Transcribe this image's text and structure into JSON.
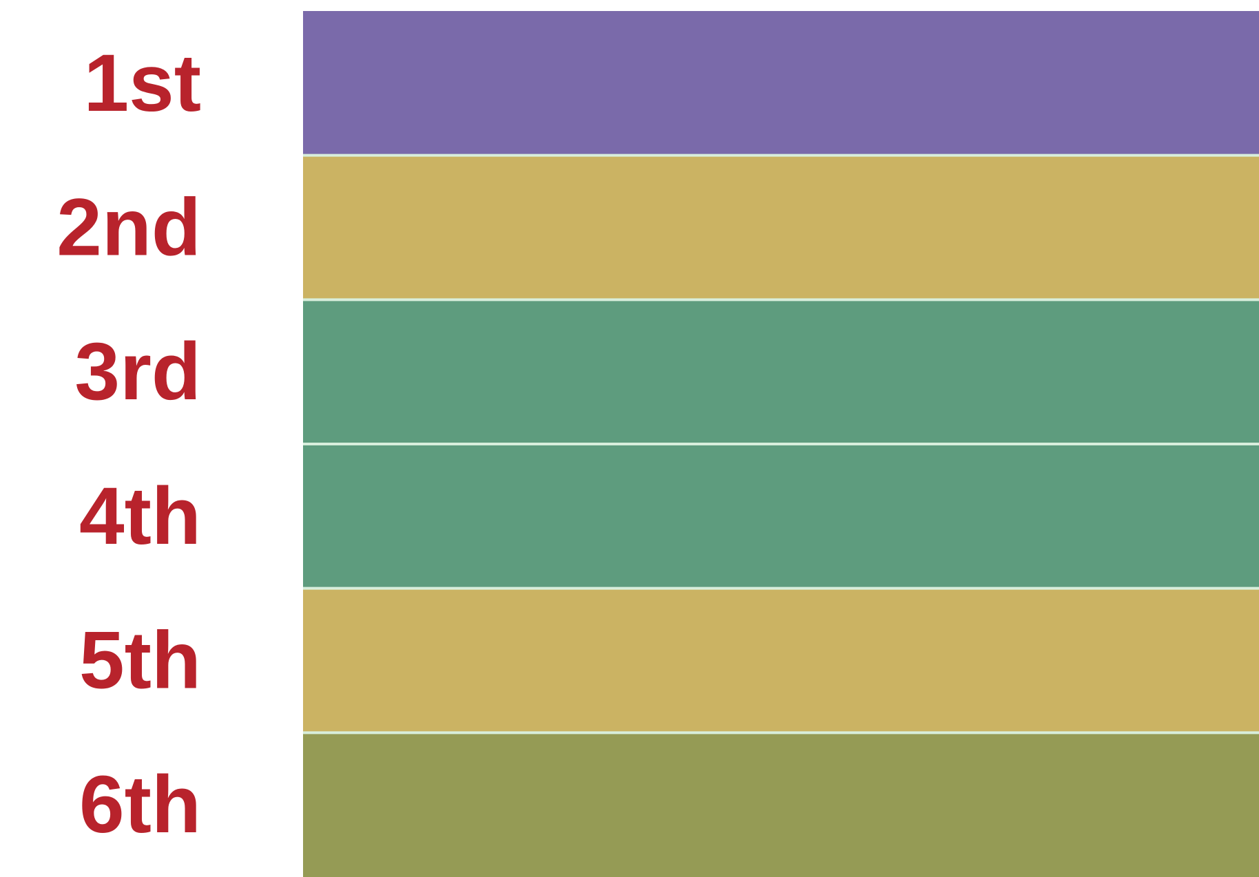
{
  "label_color": "#b8232c",
  "chart_data": {
    "type": "bar",
    "orientation": "horizontal",
    "categories": [
      "1st",
      "2nd",
      "3rd",
      "4th",
      "5th",
      "6th"
    ],
    "values": [
      1,
      1,
      1,
      1,
      1,
      1
    ],
    "colors": [
      "#7a6aaa",
      "#cbb363",
      "#5e9c7e",
      "#5e9c7e",
      "#cbb363",
      "#959b55"
    ],
    "separator_color": "#d8eedc",
    "title": "",
    "xlabel": "",
    "ylabel": "",
    "grid": false,
    "legend": "none"
  }
}
